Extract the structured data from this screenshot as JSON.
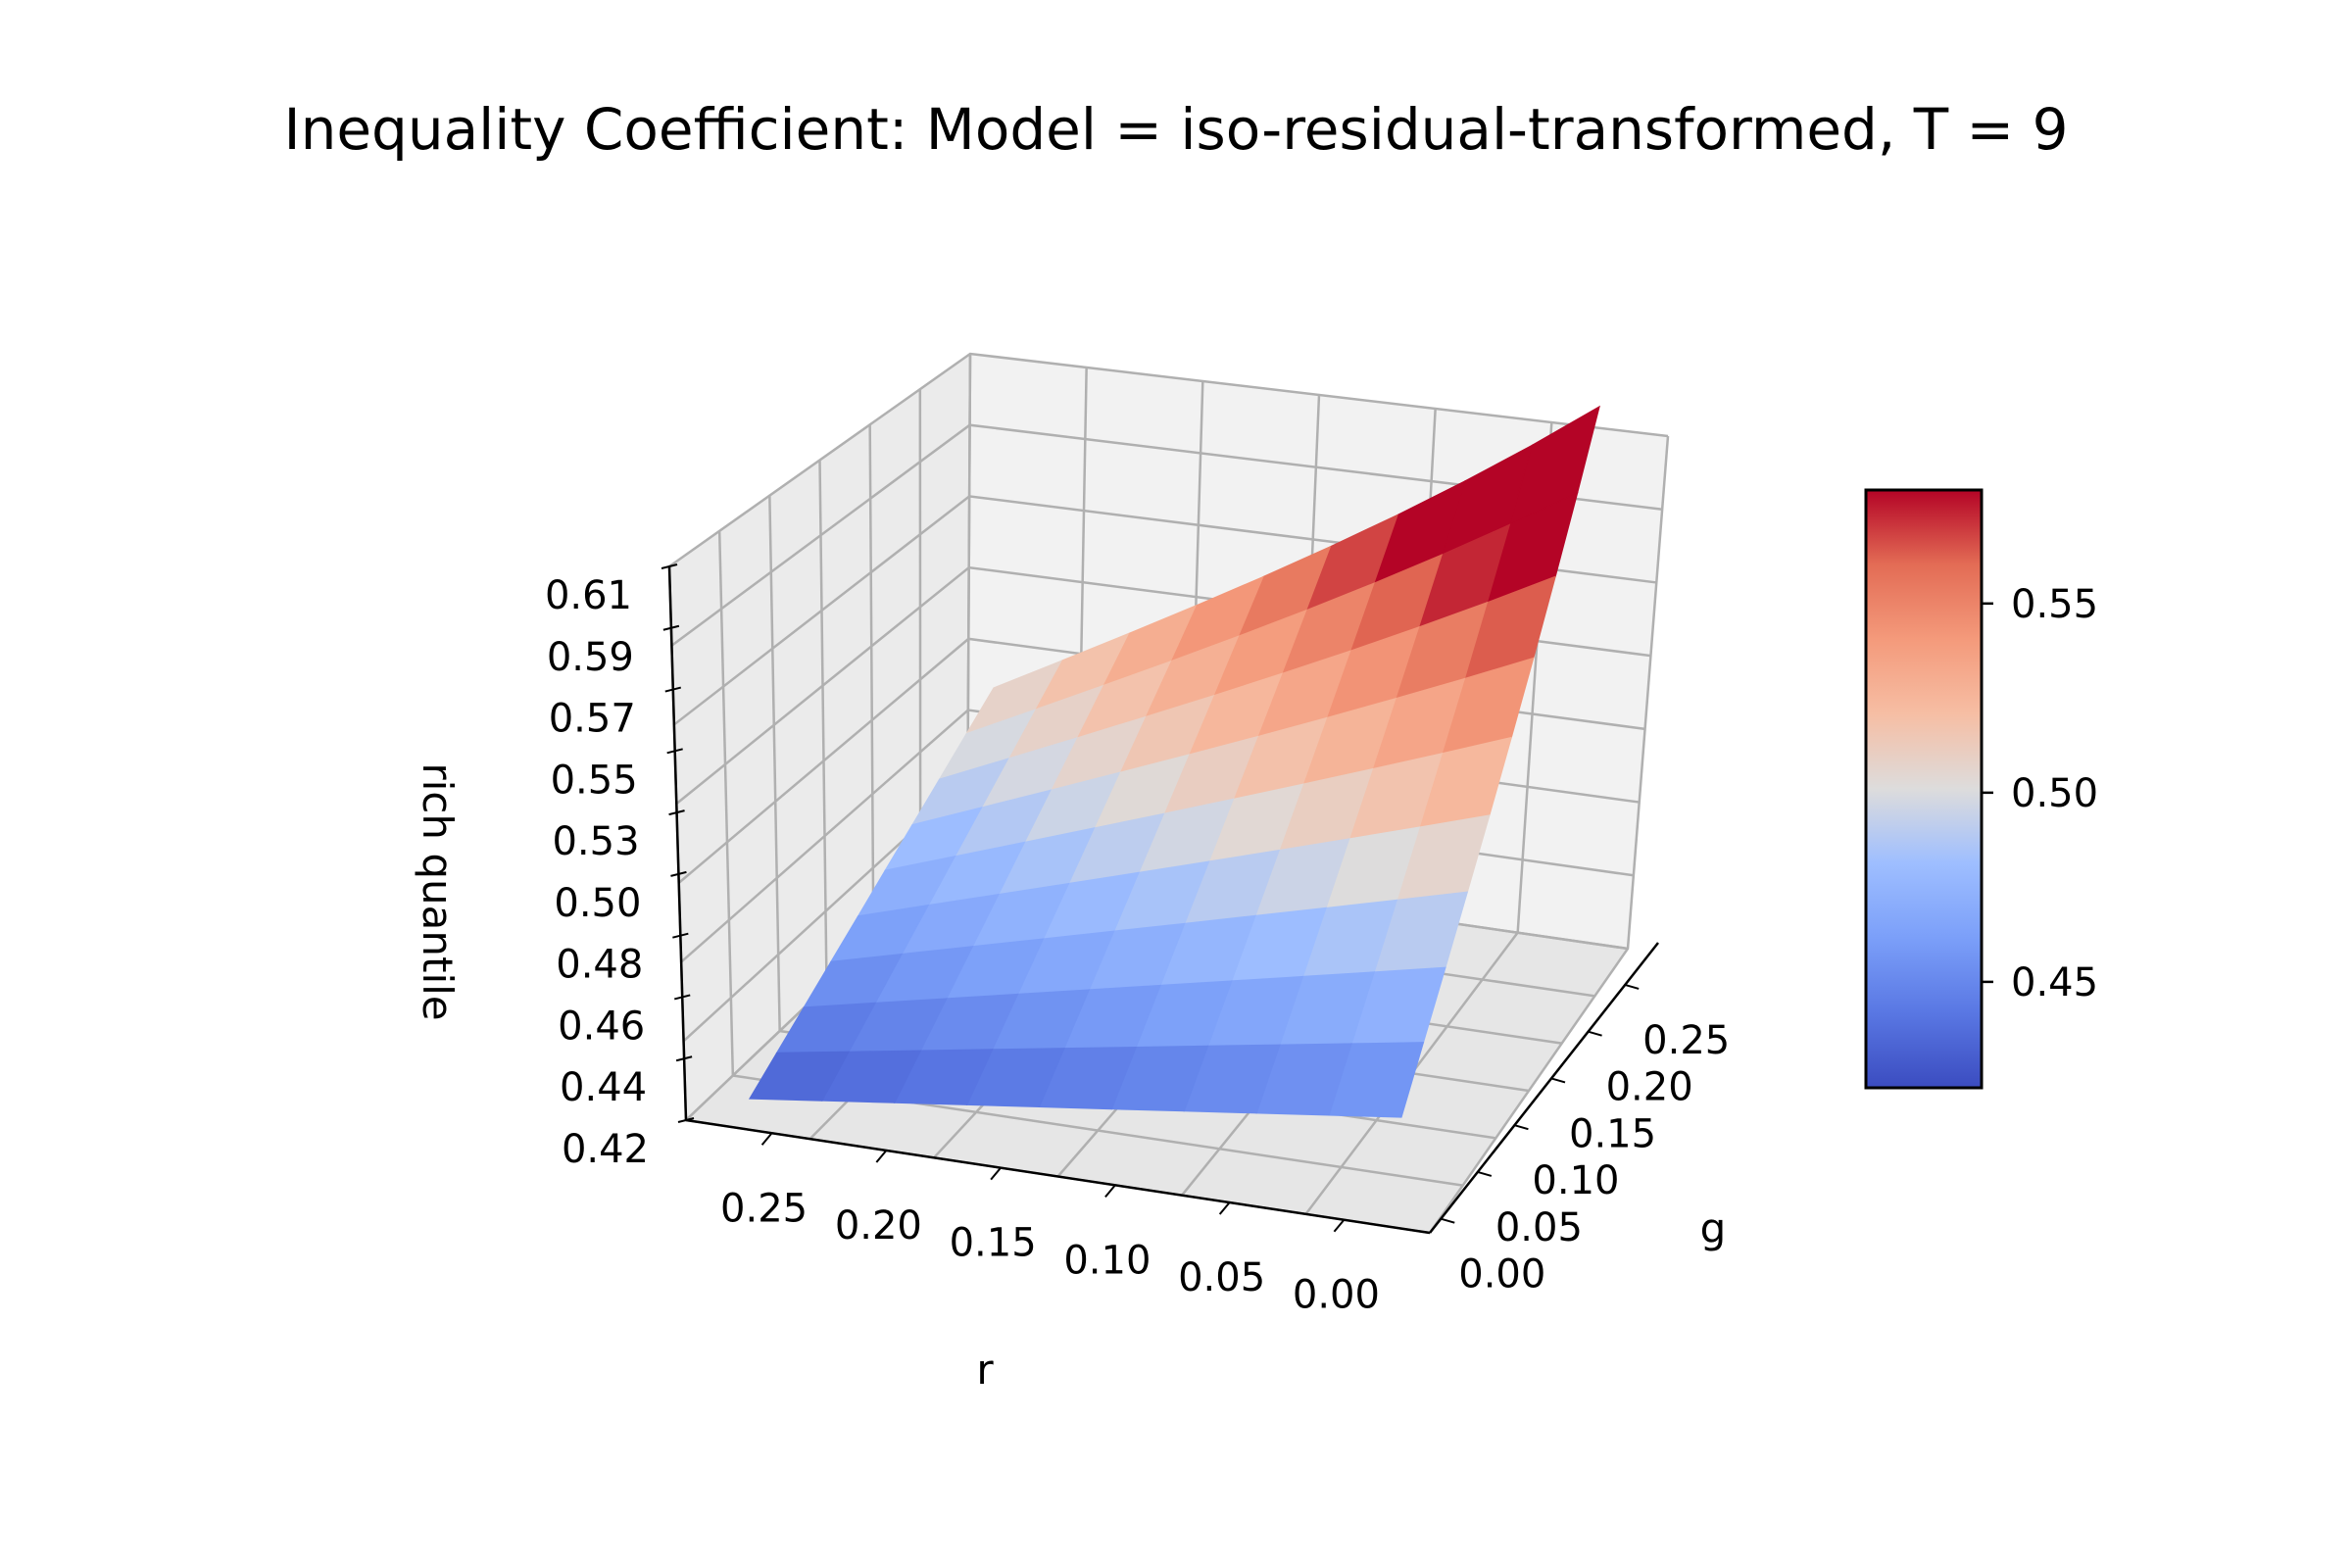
{
  "chart_data": {
    "type": "surface",
    "title": "Inequality Coefficient: Model = iso-residual-transformed, T = 9",
    "xlabel": "r",
    "ylabel": "g",
    "zlabel": "rich quantile",
    "x_ticks": [
      "0.25",
      "0.20",
      "0.15",
      "0.10",
      "0.05",
      "0.00"
    ],
    "y_ticks": [
      "0.00",
      "0.05",
      "0.10",
      "0.15",
      "0.20",
      "0.25"
    ],
    "z_ticks": [
      "0.42",
      "0.44",
      "0.46",
      "0.48",
      "0.50",
      "0.53",
      "0.55",
      "0.57",
      "0.59",
      "0.61"
    ],
    "colorbar": {
      "colormap": "coolwarm",
      "ticks": [
        "0.45",
        "0.50",
        "0.55"
      ],
      "range": [
        0.422,
        0.58
      ]
    },
    "r": [
      0.0,
      0.03,
      0.06,
      0.09,
      0.12,
      0.15,
      0.18,
      0.21,
      0.24,
      0.27
    ],
    "g": [
      0.0,
      0.03,
      0.06,
      0.09,
      0.12,
      0.15,
      0.18,
      0.21,
      0.24,
      0.27
    ],
    "z_formula_note": "",
    "z_corners": {
      "r0_g0": 0.45,
      "r0_g027": 0.6,
      "r027_g0": 0.43,
      "r027_g027": 0.515
    },
    "grid": true
  }
}
